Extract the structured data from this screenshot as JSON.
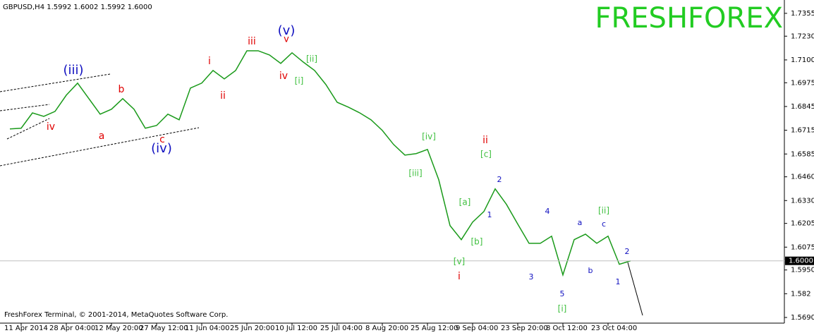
{
  "chart_data": {
    "type": "line",
    "header": "GBPUSD,H4  1.5992 1.6002 1.5992 1.6000",
    "watermark": "FRESHFOREX",
    "footer": "FreshForex Terminal, © 2001-2014, MetaQuotes Software Corp.",
    "categories": [
      null,
      "11 Apr 2014",
      null,
      null,
      null,
      "28 Apr 04:00",
      null,
      null,
      null,
      "12 May 20:00",
      null,
      null,
      null,
      "27 May 12:00",
      null,
      null,
      null,
      "11 Jun 04:00",
      null,
      null,
      null,
      "25 Jun 20:00",
      null,
      null,
      null,
      "10 Jul 12:00",
      null,
      null,
      null,
      "25 Jul 04:00",
      null,
      null,
      null,
      "8 Aug 20:00",
      null,
      null,
      null,
      "25 Aug 12:00",
      null,
      null,
      null,
      "9 Sep 04:00",
      null,
      null,
      null,
      "23 Sep 20:00",
      null,
      null,
      null,
      "8 Oct 12:00",
      null,
      null,
      null,
      "23 Oct 04:00",
      null,
      null
    ],
    "series": [
      {
        "name": "GBPUSD,H4",
        "color": "#1a9a1a",
        "values": [
          1.6722,
          1.6726,
          1.681,
          1.6791,
          1.6818,
          1.6907,
          1.6973,
          1.6888,
          1.6803,
          1.683,
          1.6888,
          1.683,
          1.6726,
          1.6741,
          1.6803,
          1.6772,
          1.6946,
          1.6973,
          1.7042,
          1.6996,
          1.7042,
          1.715,
          1.715,
          1.7127,
          1.7081,
          1.7139,
          1.7088,
          1.7042,
          1.6965,
          1.6868,
          1.6841,
          1.681,
          1.6772,
          1.6714,
          1.6637,
          1.6579,
          1.6587,
          1.661,
          1.6444,
          1.6193,
          1.6116,
          1.6212,
          1.627,
          1.6394,
          1.6309,
          1.6201,
          1.6096,
          1.6096,
          1.6135,
          1.5923,
          1.6116,
          1.6146,
          1.6096,
          1.6135,
          1.5981,
          1.6
        ]
      }
    ],
    "ylim": [
      1.5659,
      1.7428
    ],
    "yticks": [
      1.7355,
      {
        "value": 1.723,
        "label": "1.7230"
      },
      {
        "value": 1.71,
        "label": "1.7100"
      },
      1.6975,
      1.6845,
      1.6715,
      1.6585,
      {
        "value": 1.646,
        "label": "1.6460"
      },
      {
        "value": 1.633,
        "label": "1.6330"
      },
      1.6205,
      1.6075,
      {
        "value": 1.595,
        "label": "1.5950"
      },
      1.582,
      {
        "value": 1.569,
        "label": "1.5690"
      }
    ],
    "current_price": {
      "value": 1.6,
      "label": "1.6000"
    },
    "annotations": [
      {
        "text": "(iii)",
        "color": "#1010c0"
      },
      {
        "text": "iv",
        "color": "#e00000"
      },
      {
        "text": "a",
        "color": "#e00000"
      },
      {
        "text": "b",
        "color": "#e00000"
      },
      {
        "text": "c",
        "color": "#e00000"
      },
      {
        "text": "(iv)",
        "color": "#1010c0"
      },
      {
        "text": "i",
        "color": "#e00000"
      },
      {
        "text": "ii",
        "color": "#e00000"
      },
      {
        "text": "iii",
        "color": "#e00000"
      },
      {
        "text": "(v)",
        "color": "#1010c0"
      },
      {
        "text": "v",
        "color": "#e00000"
      },
      {
        "text": "iv",
        "color": "#e00000"
      },
      {
        "text": "[i]",
        "color": "#40c040"
      },
      {
        "text": "[ii]",
        "color": "#40c040"
      },
      {
        "text": "[iv]",
        "color": "#40c040"
      },
      {
        "text": "[iii]",
        "color": "#40c040"
      },
      {
        "text": "ii",
        "color": "#e00000"
      },
      {
        "text": "[c]",
        "color": "#40c040"
      },
      {
        "text": "[a]",
        "color": "#40c040"
      },
      {
        "text": "[b]",
        "color": "#40c040"
      },
      {
        "text": "[v]",
        "color": "#40c040"
      },
      {
        "text": "i",
        "color": "#e00000"
      },
      {
        "text": "1",
        "color": "#1010c0"
      },
      {
        "text": "2",
        "color": "#1010c0"
      },
      {
        "text": "4",
        "color": "#1010c0"
      },
      {
        "text": "3",
        "color": "#1010c0"
      },
      {
        "text": "5",
        "color": "#1010c0"
      },
      {
        "text": "[i]",
        "color": "#40c040"
      },
      {
        "text": "a",
        "color": "#1010c0"
      },
      {
        "text": "b",
        "color": "#1010c0"
      },
      {
        "text": "c",
        "color": "#1010c0"
      },
      {
        "text": "[ii]",
        "color": "#40c040"
      },
      {
        "text": "1",
        "color": "#1010c0"
      },
      {
        "text": "2",
        "color": "#1010c0"
      }
    ]
  }
}
